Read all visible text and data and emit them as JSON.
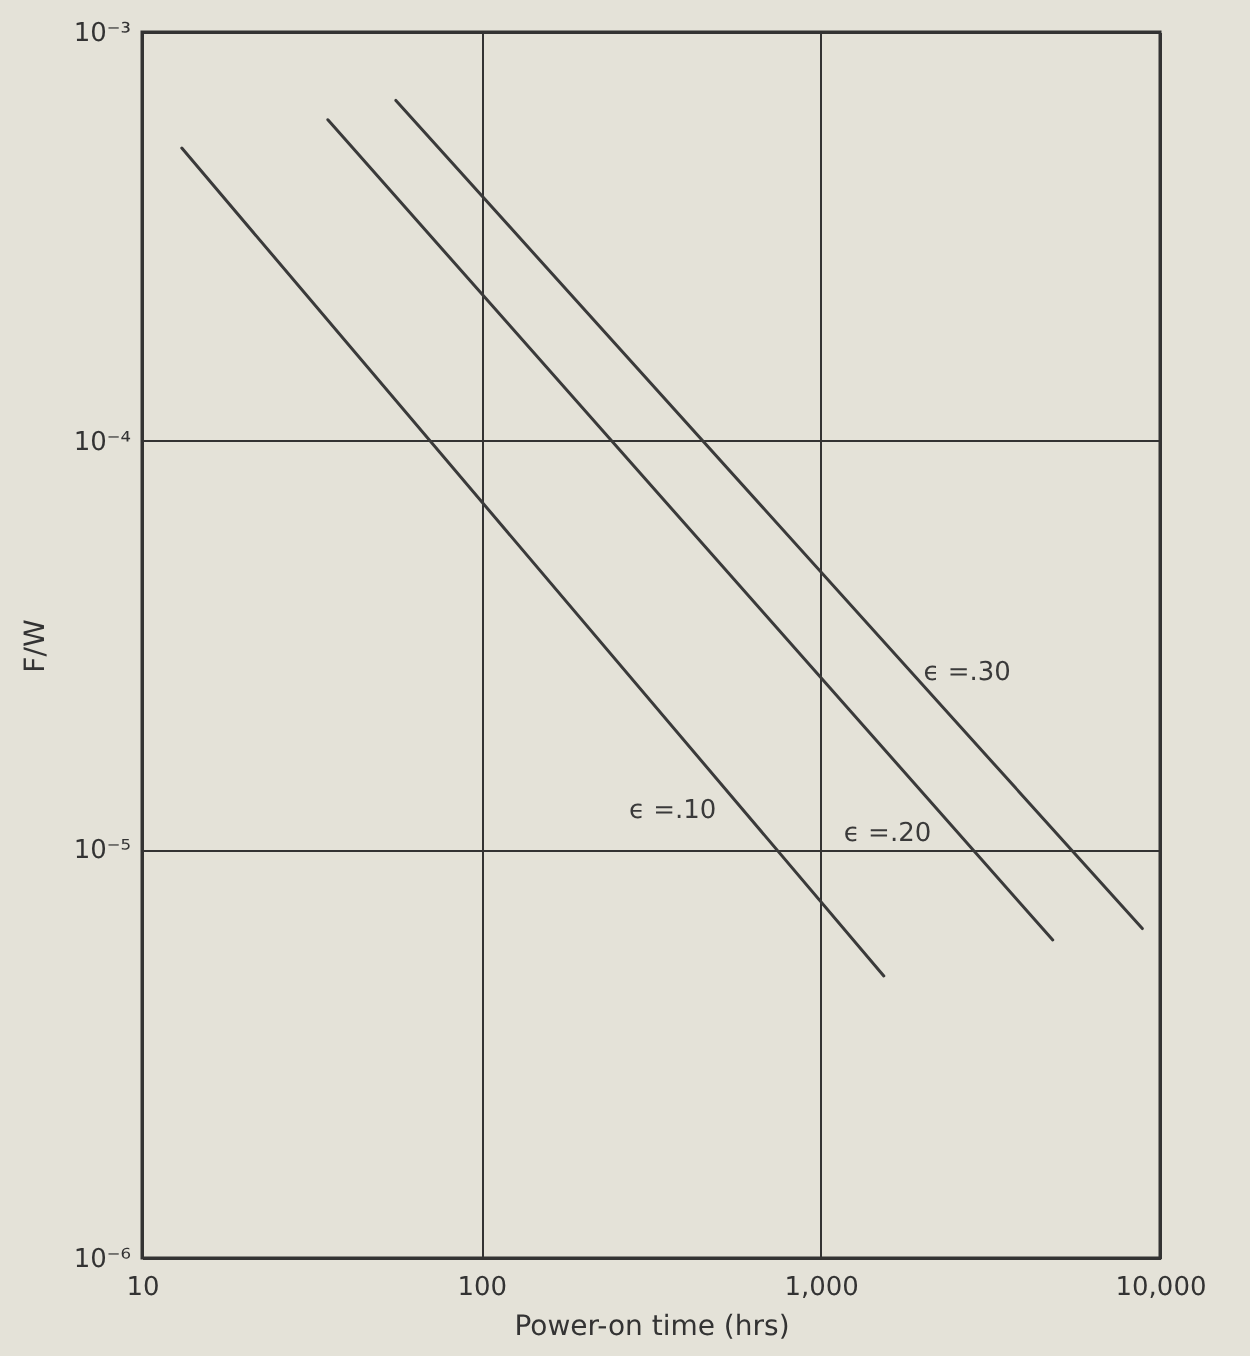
{
  "chart_data": {
    "type": "line",
    "xlabel": "Power-on time (hrs)",
    "ylabel": "F/W",
    "log": "xy",
    "grid": true,
    "marker": "none",
    "line_style": "solid",
    "xlim": [
      10,
      10000
    ],
    "xticks": [
      10,
      100,
      {
        "value": 1000,
        "label": "1,000"
      },
      {
        "value": 10000,
        "label": "10,000"
      }
    ],
    "ylim": [
      1e-06,
      0.001
    ],
    "yticks": [
      {
        "value": 1e-06,
        "label": "10⁻⁶"
      },
      {
        "value": 1e-05,
        "label": "10⁻⁵"
      },
      {
        "value": 0.0001,
        "label": "10⁻⁴"
      },
      {
        "value": 0.001,
        "label": "10⁻³"
      }
    ],
    "series": [
      {
        "name": "ϵ =.10",
        "color": "#3a3a3a",
        "x": [
          13.1,
          1535
        ],
        "values": [
          0.00052,
          4.9e-06
        ]
      },
      {
        "name": "ϵ =.20",
        "color": "#3a3a3a",
        "x": [
          35.3,
          4830
        ],
        "values": [
          0.00061,
          6e-06
        ]
      },
      {
        "name": "ϵ =.30",
        "color": "#3a3a3a",
        "x": [
          56,
          8870
        ],
        "values": [
          0.00068,
          6.4e-06
        ]
      }
    ]
  }
}
